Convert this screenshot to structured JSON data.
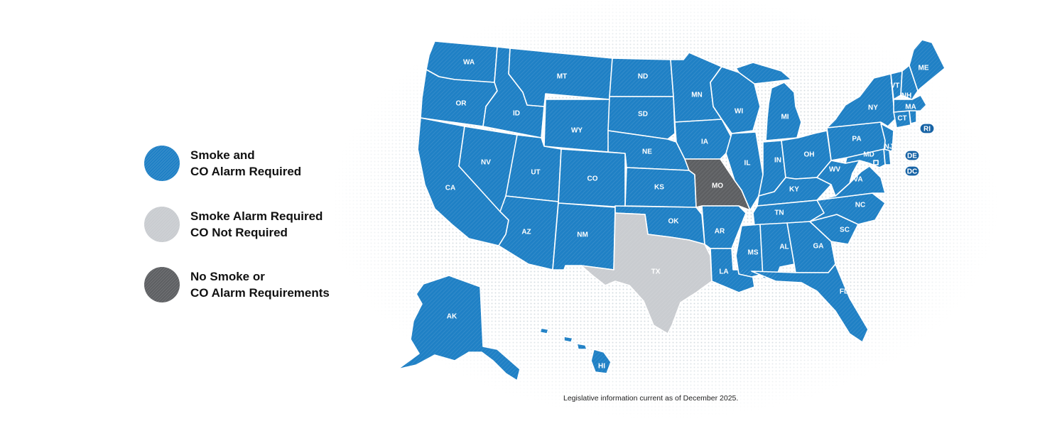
{
  "colors": {
    "required": "#1f80c5",
    "smoke_only": "#c9ccd0",
    "none": "#5d5f62",
    "background_dots": "#d6dde2"
  },
  "legend": [
    {
      "status": "required",
      "line1": "Smoke and",
      "line2": "CO Alarm Required"
    },
    {
      "status": "smoke_only",
      "line1": "Smoke Alarm Required",
      "line2": "CO Not Required"
    },
    {
      "status": "none",
      "line1": "No Smoke or",
      "line2": "CO Alarm Requirements"
    }
  ],
  "states": [
    {
      "abbr": "WA",
      "status": "required"
    },
    {
      "abbr": "OR",
      "status": "required"
    },
    {
      "abbr": "CA",
      "status": "required"
    },
    {
      "abbr": "NV",
      "status": "required"
    },
    {
      "abbr": "ID",
      "status": "required"
    },
    {
      "abbr": "MT",
      "status": "required"
    },
    {
      "abbr": "WY",
      "status": "required"
    },
    {
      "abbr": "UT",
      "status": "required"
    },
    {
      "abbr": "AZ",
      "status": "required"
    },
    {
      "abbr": "CO",
      "status": "required"
    },
    {
      "abbr": "NM",
      "status": "required"
    },
    {
      "abbr": "ND",
      "status": "required"
    },
    {
      "abbr": "SD",
      "status": "required"
    },
    {
      "abbr": "NE",
      "status": "required"
    },
    {
      "abbr": "KS",
      "status": "required"
    },
    {
      "abbr": "OK",
      "status": "required"
    },
    {
      "abbr": "TX",
      "status": "smoke_only"
    },
    {
      "abbr": "MN",
      "status": "required"
    },
    {
      "abbr": "IA",
      "status": "required"
    },
    {
      "abbr": "MO",
      "status": "none"
    },
    {
      "abbr": "AR",
      "status": "required"
    },
    {
      "abbr": "LA",
      "status": "required"
    },
    {
      "abbr": "WI",
      "status": "required"
    },
    {
      "abbr": "IL",
      "status": "required"
    },
    {
      "abbr": "MI",
      "status": "required"
    },
    {
      "abbr": "IN",
      "status": "required"
    },
    {
      "abbr": "OH",
      "status": "required"
    },
    {
      "abbr": "KY",
      "status": "required"
    },
    {
      "abbr": "TN",
      "status": "required"
    },
    {
      "abbr": "MS",
      "status": "required"
    },
    {
      "abbr": "AL",
      "status": "required"
    },
    {
      "abbr": "GA",
      "status": "required"
    },
    {
      "abbr": "FL",
      "status": "required"
    },
    {
      "abbr": "SC",
      "status": "required"
    },
    {
      "abbr": "NC",
      "status": "required"
    },
    {
      "abbr": "VA",
      "status": "required"
    },
    {
      "abbr": "WV",
      "status": "required"
    },
    {
      "abbr": "PA",
      "status": "required"
    },
    {
      "abbr": "NY",
      "status": "required"
    },
    {
      "abbr": "VT",
      "status": "required"
    },
    {
      "abbr": "NH",
      "status": "required"
    },
    {
      "abbr": "ME",
      "status": "required"
    },
    {
      "abbr": "MA",
      "status": "required"
    },
    {
      "abbr": "CT",
      "status": "required"
    },
    {
      "abbr": "RI",
      "status": "required"
    },
    {
      "abbr": "NJ",
      "status": "required"
    },
    {
      "abbr": "DE",
      "status": "required"
    },
    {
      "abbr": "MD",
      "status": "required"
    },
    {
      "abbr": "DC",
      "status": "required"
    },
    {
      "abbr": "AK",
      "status": "required"
    },
    {
      "abbr": "HI",
      "status": "required"
    }
  ],
  "footnote": "Legislative information current as of December 2025."
}
